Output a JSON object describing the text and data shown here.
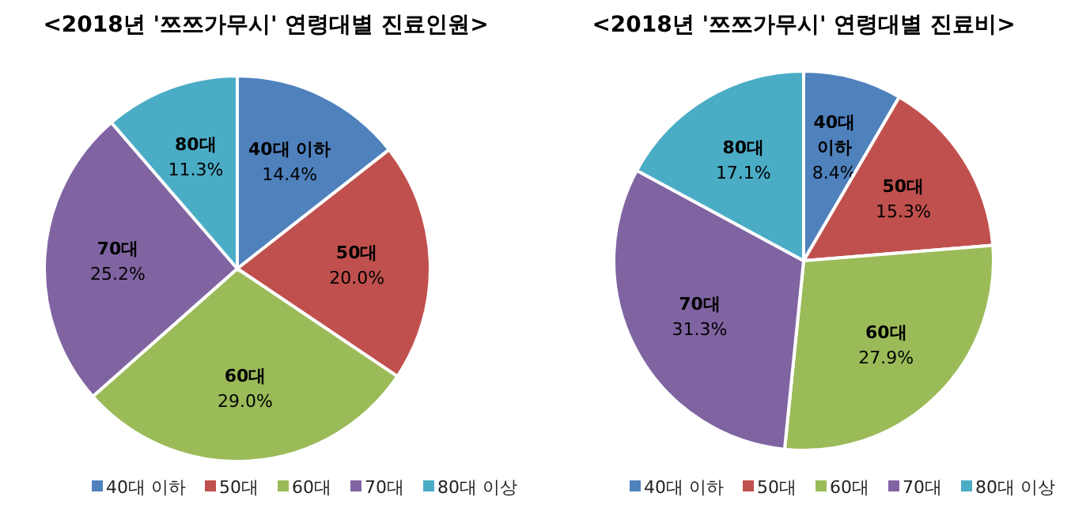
{
  "chart_data": [
    {
      "type": "pie",
      "title": "<2018년 '쯔쯔가무시' 연령대별 진료인원>",
      "categories": [
        "40대 이하",
        "50대",
        "60대",
        "70대",
        "80대 이상"
      ],
      "values": [
        14.4,
        20.0,
        29.0,
        25.2,
        11.3
      ],
      "colors": [
        "#4f81bd",
        "#c0504d",
        "#9bbb59",
        "#8064a2",
        "#4bacc6"
      ],
      "value_labels": [
        "40대 이하\n14.4%",
        "50대\n20.0%",
        "60대\n29.0%",
        "70대\n25.2%",
        "80대\n11.3%"
      ],
      "legend": "bottom"
    },
    {
      "type": "pie",
      "title": "<2018년 '쯔쯔가무시' 연령대별 진료비>",
      "categories": [
        "40대 이하",
        "50대",
        "60대",
        "70대",
        "80대 이상"
      ],
      "values": [
        8.4,
        15.3,
        27.9,
        31.3,
        17.1
      ],
      "colors": [
        "#4f81bd",
        "#c0504d",
        "#9bbb59",
        "#8064a2",
        "#4bacc6"
      ],
      "value_labels": [
        "40대\n이하\n8.4%",
        "50대\n15.3%",
        "60대\n27.9%",
        "70대\n31.3%",
        "80대\n17.1%"
      ],
      "legend": "bottom"
    }
  ]
}
